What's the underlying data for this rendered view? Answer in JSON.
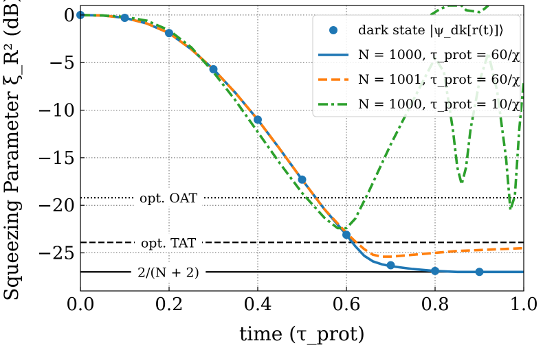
{
  "chart_data": {
    "type": "line",
    "xlabel": "time (τ_prot)",
    "ylabel": "Squeezing Parameter ξ_R² (dB)",
    "xlim": [
      0,
      1
    ],
    "ylim": [
      -29,
      1
    ],
    "x_ticks": [
      "0.0",
      "0.2",
      "0.4",
      "0.6",
      "0.8",
      "1.0"
    ],
    "x_tick_values": [
      0,
      0.2,
      0.4,
      0.6,
      0.8,
      1.0
    ],
    "y_ticks": [
      "0",
      "−5",
      "−10",
      "−15",
      "−20",
      "−25"
    ],
    "y_tick_values": [
      0,
      -5,
      -10,
      -15,
      -20,
      -25
    ],
    "grid": true,
    "legend_position": "top-right",
    "legend": [
      {
        "label": "dark state |ψ_dk[r(t)]⟩",
        "style": "marker",
        "color": "#1f77b4"
      },
      {
        "label": "N = 1000, τ_prot = 60/χ",
        "style": "solid",
        "color": "#1f77b4"
      },
      {
        "label": "N = 1001, τ_prot = 60/χ",
        "style": "dashed",
        "color": "#ff7f0e"
      },
      {
        "label": "N = 1000, τ_prot = 10/χ",
        "style": "dashdot",
        "color": "#2ca02c"
      }
    ],
    "reference_lines": [
      {
        "label": "opt. OAT",
        "y": -19.2,
        "style": "dotted"
      },
      {
        "label": "opt. TAT",
        "y": -23.9,
        "style": "dashed"
      },
      {
        "label": "2/(N + 2)",
        "y": -27.0,
        "style": "solid"
      }
    ],
    "series": [
      {
        "name": "dark state",
        "type": "scatter",
        "color": "#1f77b4",
        "x": [
          0.0,
          0.1,
          0.2,
          0.3,
          0.4,
          0.5,
          0.6,
          0.7,
          0.8,
          0.9
        ],
        "y": [
          0.0,
          -0.3,
          -1.9,
          -5.7,
          -11.0,
          -17.3,
          -23.1,
          -26.3,
          -26.9,
          -27.0
        ]
      },
      {
        "name": "N = 1000, τprot = 60/χ",
        "type": "line",
        "color": "#1f77b4",
        "x": [
          0.0,
          0.05,
          0.1,
          0.15,
          0.2,
          0.25,
          0.3,
          0.35,
          0.4,
          0.45,
          0.5,
          0.55,
          0.6,
          0.62,
          0.64,
          0.66,
          0.68,
          0.7,
          0.75,
          0.8,
          0.85,
          0.9,
          0.95,
          1.0
        ],
        "y": [
          0.0,
          -0.05,
          -0.3,
          -0.9,
          -1.9,
          -3.6,
          -5.7,
          -8.2,
          -11.0,
          -14.1,
          -17.3,
          -20.4,
          -23.1,
          -24.3,
          -25.3,
          -25.9,
          -26.2,
          -26.4,
          -26.7,
          -26.9,
          -27.0,
          -27.0,
          -27.0,
          -27.0
        ]
      },
      {
        "name": "N = 1001, τprot = 60/χ",
        "type": "line",
        "color": "#ff7f0e",
        "x": [
          0.0,
          0.05,
          0.1,
          0.15,
          0.2,
          0.25,
          0.3,
          0.35,
          0.4,
          0.45,
          0.5,
          0.55,
          0.6,
          0.62,
          0.64,
          0.66,
          0.68,
          0.7,
          0.75,
          0.8,
          0.85,
          0.9,
          0.95,
          1.0
        ],
        "y": [
          0.0,
          -0.05,
          -0.3,
          -0.9,
          -1.9,
          -3.6,
          -5.7,
          -8.2,
          -11.0,
          -14.1,
          -17.3,
          -20.4,
          -22.9,
          -23.8,
          -24.6,
          -25.2,
          -25.4,
          -25.4,
          -25.2,
          -25.0,
          -24.8,
          -24.7,
          -24.6,
          -24.5
        ]
      },
      {
        "name": "N = 1000, τprot = 10/χ",
        "type": "line",
        "color": "#2ca02c",
        "x": [
          0.0,
          0.05,
          0.1,
          0.15,
          0.2,
          0.25,
          0.3,
          0.35,
          0.4,
          0.45,
          0.5,
          0.55,
          0.58,
          0.6,
          0.62,
          0.65,
          0.7,
          0.75,
          0.8,
          0.82,
          0.84,
          0.85,
          0.86,
          0.87,
          0.88,
          0.9,
          0.92,
          0.94,
          0.96,
          0.97,
          0.98,
          0.99,
          1.0
        ],
        "y": [
          0.0,
          -0.05,
          -0.2,
          -0.6,
          -1.6,
          -3.4,
          -6.0,
          -9.0,
          -12.3,
          -15.6,
          -18.7,
          -21.3,
          -22.4,
          -22.4,
          -21.4,
          -18.6,
          -13.6,
          -9.0,
          -4.5,
          -6.0,
          -12.0,
          -16.0,
          -17.8,
          -16.0,
          -12.0,
          -7.0,
          -4.0,
          -8.0,
          -15.0,
          -20.5,
          -19.0,
          -12.0,
          -7.0
        ]
      },
      {
        "name": "N = 1000, τprot = 10/χ (upper)",
        "type": "line",
        "color": "#2ca02c",
        "x": [
          0.79,
          0.8,
          0.81,
          0.82,
          0.83,
          0.86,
          0.87,
          0.9,
          0.91,
          0.92
        ],
        "y": [
          0.0,
          0.3,
          0.6,
          0.8,
          1.0,
          1.0,
          0.5,
          0.3,
          0.6,
          1.0
        ]
      }
    ]
  }
}
